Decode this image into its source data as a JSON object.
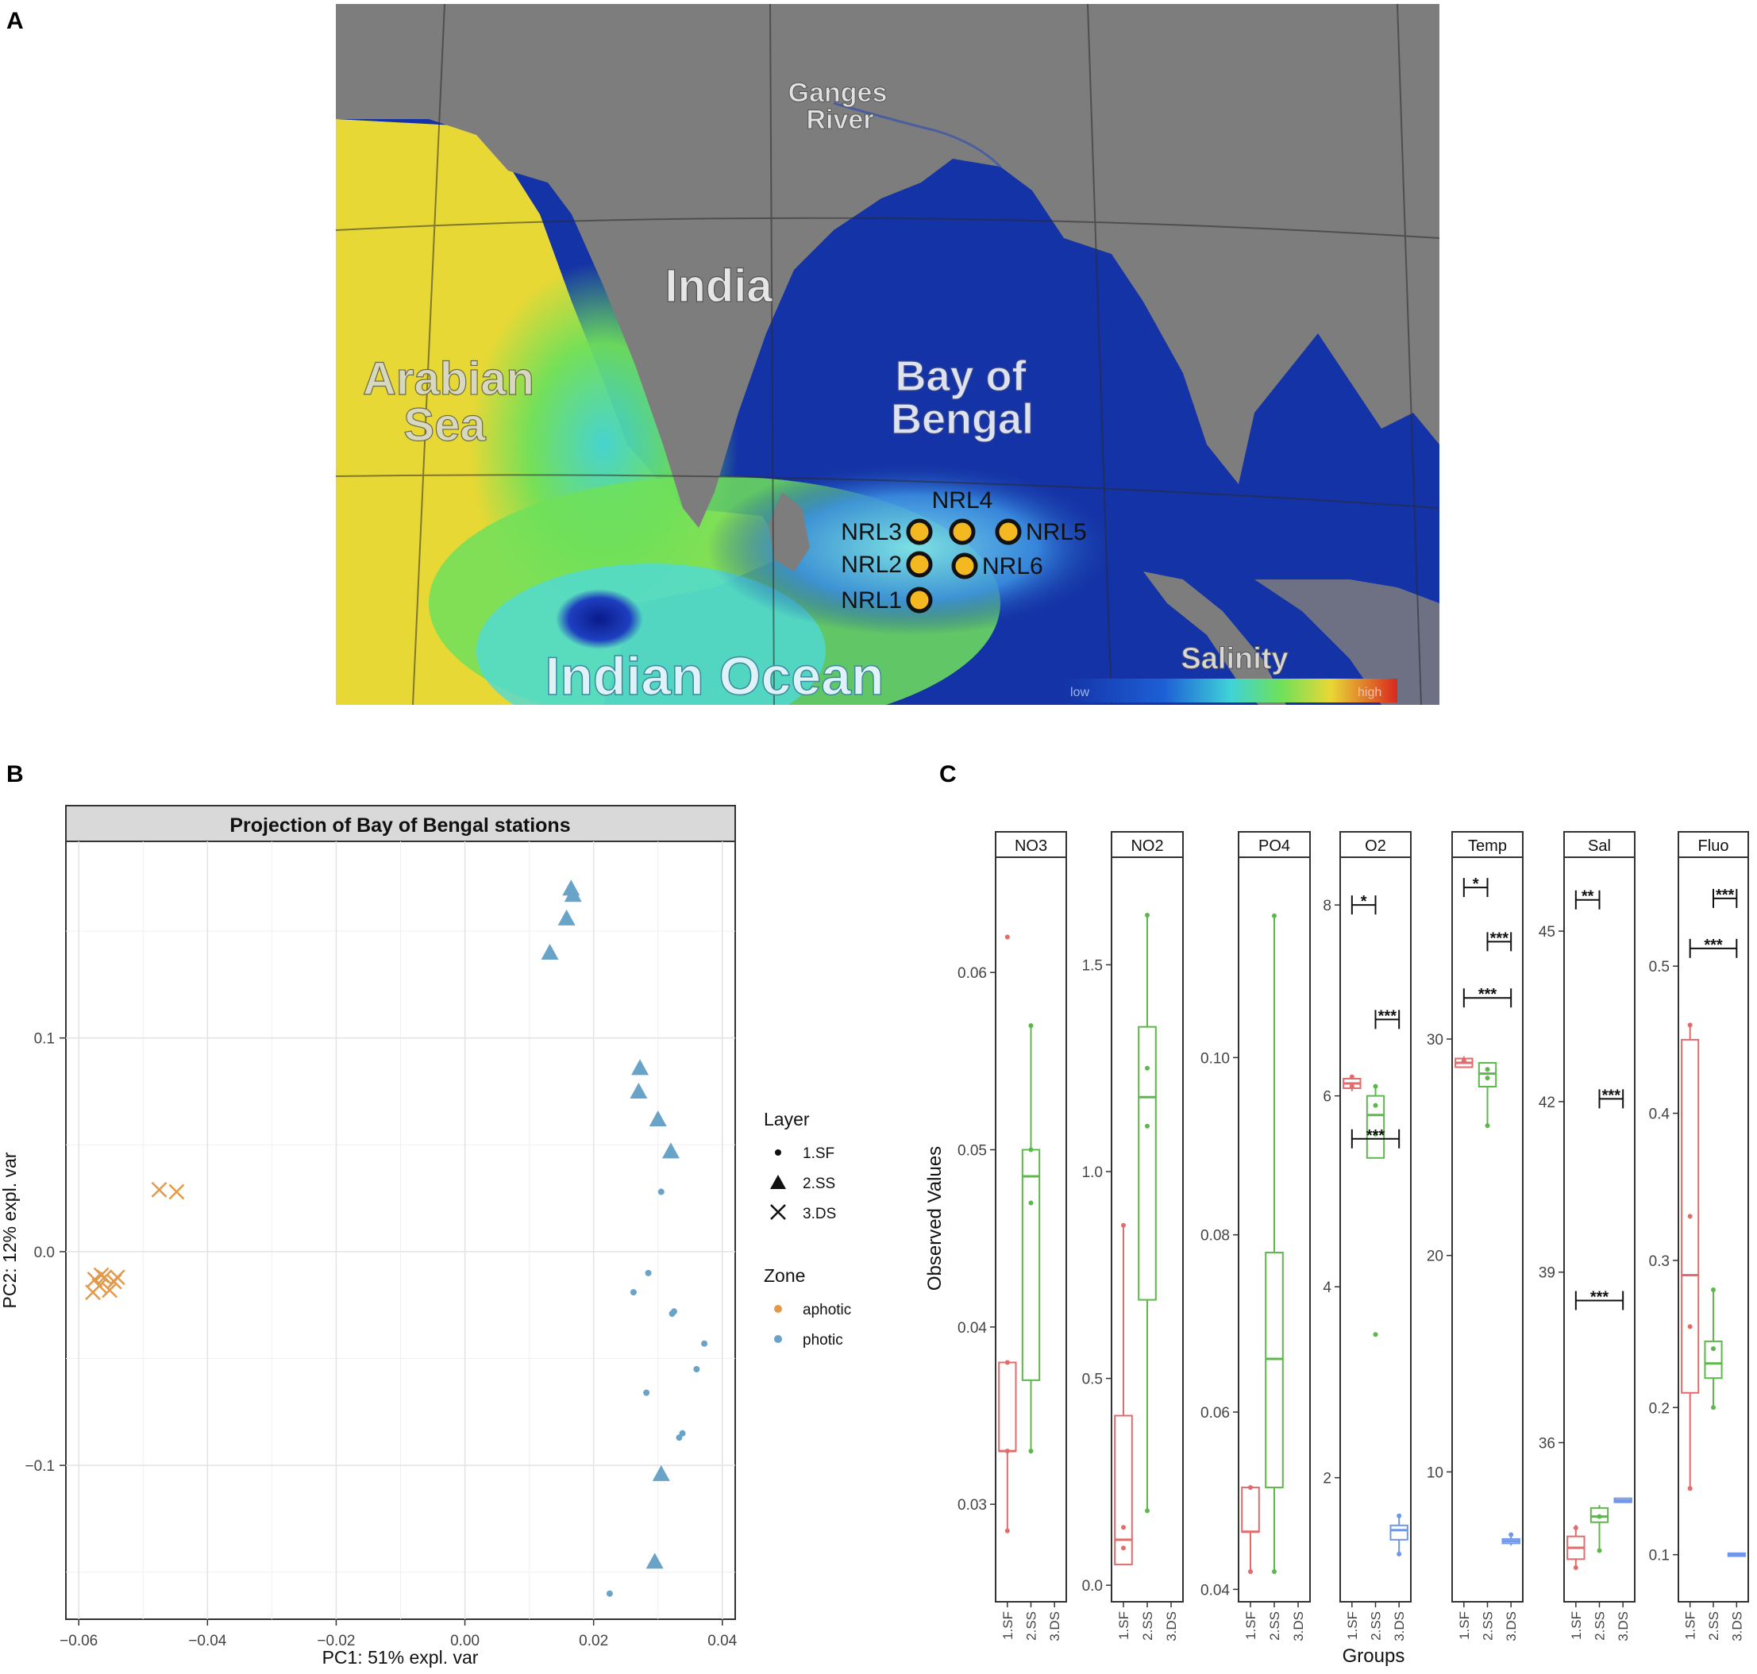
{
  "panel_labels": {
    "a": "A",
    "b": "B",
    "c": "C"
  },
  "map": {
    "labels": {
      "ganges": [
        "Ganges",
        "River"
      ],
      "india": "India",
      "arabian": [
        "Arabian",
        "Sea"
      ],
      "bay": [
        "Bay of",
        "Bengal"
      ],
      "indian_ocean": "Indian Ocean",
      "salinity": "Salinity",
      "low": "low",
      "high": "high"
    },
    "stations": [
      "NRL1",
      "NRL2",
      "NRL3",
      "NRL4",
      "NRL5",
      "NRL6"
    ],
    "colors": {
      "land": "#7d7d7d",
      "bay": "#1433a6",
      "arabian": "#e8d835",
      "station": "#f4b820"
    }
  },
  "chart_data": [
    {
      "type": "scatter",
      "title": "Projection of Bay of Bengal stations",
      "xlabel": "PC1: 51% expl. var",
      "ylabel": "PC2: 12% expl. var",
      "xlim": [
        -0.062,
        0.042
      ],
      "ylim": [
        -0.172,
        0.192
      ],
      "xticks": [
        -0.06,
        -0.04,
        -0.02,
        0.0,
        0.02,
        0.04
      ],
      "xtick_labels": [
        "−0.06",
        "−0.04",
        "−0.02",
        "0.00",
        "0.02",
        "0.04"
      ],
      "yticks": [
        -0.1,
        0.0,
        0.1
      ],
      "ytick_labels": [
        "−0.1",
        "0.0",
        "0.1"
      ],
      "grid": true,
      "legend_placement": "right",
      "legend": {
        "layer_title": "Layer",
        "layers": [
          {
            "label": "1.SF",
            "shape": "dot"
          },
          {
            "label": "2.SS",
            "shape": "triangle"
          },
          {
            "label": "3.DS",
            "shape": "cross"
          }
        ],
        "zone_title": "Zone",
        "zones": [
          {
            "label": "aphotic",
            "color": "#e29a4a"
          },
          {
            "label": "photic",
            "color": "#6aa3c8"
          }
        ]
      },
      "points": [
        {
          "x": 0.0165,
          "y": 0.17,
          "layer": "2.SS",
          "zone": "photic"
        },
        {
          "x": 0.0168,
          "y": 0.167,
          "layer": "2.SS",
          "zone": "photic"
        },
        {
          "x": 0.0158,
          "y": 0.156,
          "layer": "2.SS",
          "zone": "photic"
        },
        {
          "x": 0.0132,
          "y": 0.14,
          "layer": "2.SS",
          "zone": "photic"
        },
        {
          "x": 0.0272,
          "y": 0.086,
          "layer": "2.SS",
          "zone": "photic"
        },
        {
          "x": 0.027,
          "y": 0.075,
          "layer": "2.SS",
          "zone": "photic"
        },
        {
          "x": 0.03,
          "y": 0.062,
          "layer": "2.SS",
          "zone": "photic"
        },
        {
          "x": 0.032,
          "y": 0.047,
          "layer": "2.SS",
          "zone": "photic"
        },
        {
          "x": 0.0305,
          "y": -0.104,
          "layer": "2.SS",
          "zone": "photic"
        },
        {
          "x": 0.0295,
          "y": -0.145,
          "layer": "2.SS",
          "zone": "photic"
        },
        {
          "x": 0.0305,
          "y": 0.028,
          "layer": "1.SF",
          "zone": "photic"
        },
        {
          "x": 0.0285,
          "y": -0.01,
          "layer": "1.SF",
          "zone": "photic"
        },
        {
          "x": 0.0262,
          "y": -0.019,
          "layer": "1.SF",
          "zone": "photic"
        },
        {
          "x": 0.0325,
          "y": -0.028,
          "layer": "1.SF",
          "zone": "photic"
        },
        {
          "x": 0.0322,
          "y": -0.029,
          "layer": "1.SF",
          "zone": "photic"
        },
        {
          "x": 0.0372,
          "y": -0.043,
          "layer": "1.SF",
          "zone": "photic"
        },
        {
          "x": 0.036,
          "y": -0.055,
          "layer": "1.SF",
          "zone": "photic"
        },
        {
          "x": 0.0282,
          "y": -0.066,
          "layer": "1.SF",
          "zone": "photic"
        },
        {
          "x": 0.0338,
          "y": -0.085,
          "layer": "1.SF",
          "zone": "photic"
        },
        {
          "x": 0.0333,
          "y": -0.087,
          "layer": "1.SF",
          "zone": "photic"
        },
        {
          "x": 0.0225,
          "y": -0.16,
          "layer": "1.SF",
          "zone": "photic"
        },
        {
          "x": -0.0475,
          "y": 0.029,
          "layer": "3.DS",
          "zone": "aphotic"
        },
        {
          "x": -0.0448,
          "y": 0.028,
          "layer": "3.DS",
          "zone": "aphotic"
        },
        {
          "x": -0.0575,
          "y": -0.013,
          "layer": "3.DS",
          "zone": "aphotic"
        },
        {
          "x": -0.0568,
          "y": -0.016,
          "layer": "3.DS",
          "zone": "aphotic"
        },
        {
          "x": -0.056,
          "y": -0.012,
          "layer": "3.DS",
          "zone": "aphotic"
        },
        {
          "x": -0.0552,
          "y": -0.018,
          "layer": "3.DS",
          "zone": "aphotic"
        },
        {
          "x": -0.0545,
          "y": -0.014,
          "layer": "3.DS",
          "zone": "aphotic"
        },
        {
          "x": -0.0578,
          "y": -0.019,
          "layer": "3.DS",
          "zone": "aphotic"
        },
        {
          "x": -0.054,
          "y": -0.012,
          "layer": "3.DS",
          "zone": "aphotic"
        },
        {
          "x": -0.0565,
          "y": -0.011,
          "layer": "3.DS",
          "zone": "aphotic"
        }
      ]
    },
    {
      "type": "box",
      "ylabel": "Observed Values",
      "xlabel": "Groups",
      "groups": [
        "1.SF",
        "2.SS",
        "3.DS"
      ],
      "group_colors": [
        "#e26b6b",
        "#5cb84a",
        "#6f96e8"
      ],
      "facets": [
        {
          "name": "NO3",
          "ylim": [
            0.0245,
            0.0665
          ],
          "ticks": [
            0.03,
            0.04,
            0.05,
            0.06
          ],
          "tick_labels": [
            "0.03",
            "0.04",
            "0.05",
            "0.06"
          ],
          "boxes": [
            {
              "group": "1.SF",
              "q1": 0.033,
              "median": 0.033,
              "q3": 0.038,
              "min": 0.0285,
              "max": 0.038,
              "points": [
                0.062,
                0.038,
                0.033,
                0.0285
              ]
            },
            {
              "group": "2.SS",
              "q1": 0.037,
              "median": 0.0485,
              "q3": 0.05,
              "min": 0.033,
              "max": 0.057,
              "points": [
                0.057,
                0.05,
                0.047,
                0.033
              ]
            }
          ],
          "sig": []
        },
        {
          "name": "NO2",
          "ylim": [
            -0.04,
            1.76
          ],
          "ticks": [
            0.0,
            0.5,
            1.0,
            1.5
          ],
          "tick_labels": [
            "0.0",
            "0.5",
            "1.0",
            "1.5"
          ],
          "boxes": [
            {
              "group": "1.SF",
              "q1": 0.05,
              "median": 0.11,
              "q3": 0.41,
              "min": 0.05,
              "max": 0.87,
              "points": [
                0.87,
                0.14,
                0.09
              ]
            },
            {
              "group": "2.SS",
              "q1": 0.69,
              "median": 1.18,
              "q3": 1.35,
              "min": 0.18,
              "max": 1.62,
              "points": [
                1.62,
                1.25,
                1.11,
                0.18
              ]
            }
          ],
          "sig": []
        },
        {
          "name": "PO4",
          "ylim": [
            0.0386,
            0.1226
          ],
          "ticks": [
            0.04,
            0.06,
            0.08,
            0.1
          ],
          "tick_labels": [
            "0.04",
            "0.06",
            "0.08",
            "0.10"
          ],
          "boxes": [
            {
              "group": "1.SF",
              "q1": 0.0465,
              "median": 0.0465,
              "q3": 0.0515,
              "min": 0.042,
              "max": 0.0515,
              "points": [
                0.0515,
                0.042
              ]
            },
            {
              "group": "2.SS",
              "q1": 0.0515,
              "median": 0.066,
              "q3": 0.078,
              "min": 0.042,
              "max": 0.116,
              "points": [
                0.116,
                0.042
              ]
            }
          ],
          "sig": []
        },
        {
          "name": "O2",
          "ylim": [
            0.7,
            8.5
          ],
          "ticks": [
            2,
            4,
            6,
            8
          ],
          "tick_labels": [
            "2",
            "4",
            "6",
            "8"
          ],
          "boxes": [
            {
              "group": "1.SF",
              "q1": 6.08,
              "median": 6.13,
              "q3": 6.18,
              "min": 6.05,
              "max": 6.2,
              "points": [
                6.2,
                6.1
              ]
            },
            {
              "group": "2.SS",
              "q1": 5.35,
              "median": 5.8,
              "q3": 6.0,
              "min": 5.35,
              "max": 6.1,
              "points": [
                6.1,
                5.9,
                5.6,
                3.5
              ]
            },
            {
              "group": "3.DS",
              "q1": 1.35,
              "median": 1.45,
              "q3": 1.5,
              "min": 1.2,
              "max": 1.6,
              "points": [
                1.6,
                1.2
              ]
            }
          ],
          "sig": [
            {
              "from": 0,
              "to": 1,
              "y": 8.0,
              "label": "*"
            },
            {
              "from": 1,
              "to": 2,
              "y": 6.8,
              "label": "***"
            },
            {
              "from": 0,
              "to": 2,
              "y": 5.55,
              "label": "***"
            }
          ]
        },
        {
          "name": "Temp",
          "ylim": [
            4.0,
            38.4
          ],
          "ticks": [
            10,
            20,
            30
          ],
          "tick_labels": [
            "10",
            "20",
            "30"
          ],
          "boxes": [
            {
              "group": "1.SF",
              "q1": 28.7,
              "median": 28.9,
              "q3": 29.1,
              "min": 28.7,
              "max": 29.2,
              "points": [
                29.0
              ]
            },
            {
              "group": "2.SS",
              "q1": 27.8,
              "median": 28.4,
              "q3": 28.9,
              "min": 26.0,
              "max": 28.9,
              "points": [
                28.6,
                28.2,
                26.0
              ]
            },
            {
              "group": "3.DS",
              "q1": 6.7,
              "median": 6.8,
              "q3": 6.9,
              "min": 6.6,
              "max": 7.0,
              "points": [
                7.1
              ]
            }
          ],
          "sig": [
            {
              "from": 0,
              "to": 1,
              "y": 37.0,
              "label": "*"
            },
            {
              "from": 1,
              "to": 2,
              "y": 34.5,
              "label": "***"
            },
            {
              "from": 0,
              "to": 2,
              "y": 31.9,
              "label": "***"
            }
          ]
        },
        {
          "name": "Sal",
          "ylim": [
            33.2,
            46.3
          ],
          "ticks": [
            36,
            39,
            42,
            45
          ],
          "tick_labels": [
            "36",
            "39",
            "42",
            "45"
          ],
          "boxes": [
            {
              "group": "1.SF",
              "q1": 33.95,
              "median": 34.15,
              "q3": 34.35,
              "min": 33.8,
              "max": 34.55,
              "points": [
                34.5,
                33.8
              ]
            },
            {
              "group": "2.SS",
              "q1": 34.6,
              "median": 34.7,
              "q3": 34.85,
              "min": 34.1,
              "max": 34.9,
              "points": [
                34.7,
                34.1
              ]
            },
            {
              "group": "3.DS",
              "q1": 34.95,
              "median": 34.98,
              "q3": 35.02,
              "min": 34.95,
              "max": 35.02,
              "points": []
            }
          ],
          "sig": [
            {
              "from": 0,
              "to": 1,
              "y": 45.55,
              "label": "**"
            },
            {
              "from": 1,
              "to": 2,
              "y": 42.05,
              "label": "***"
            },
            {
              "from": 0,
              "to": 2,
              "y": 38.5,
              "label": "***"
            }
          ]
        },
        {
          "name": "Fluo",
          "ylim": [
            0.068,
            0.574
          ],
          "ticks": [
            0.1,
            0.2,
            0.3,
            0.4,
            0.5
          ],
          "tick_labels": [
            "0.1",
            "0.2",
            "0.3",
            "0.4",
            "0.5"
          ],
          "boxes": [
            {
              "group": "1.SF",
              "q1": 0.21,
              "median": 0.29,
              "q3": 0.45,
              "min": 0.145,
              "max": 0.46,
              "points": [
                0.46,
                0.33,
                0.255,
                0.145
              ]
            },
            {
              "group": "2.SS",
              "q1": 0.22,
              "median": 0.23,
              "q3": 0.245,
              "min": 0.2,
              "max": 0.28,
              "points": [
                0.28,
                0.24,
                0.2
              ]
            },
            {
              "group": "3.DS",
              "q1": 0.099,
              "median": 0.1,
              "q3": 0.101,
              "min": 0.099,
              "max": 0.101,
              "points": []
            }
          ],
          "sig": [
            {
              "from": 1,
              "to": 2,
              "y": 0.546,
              "label": "***"
            },
            {
              "from": 0,
              "to": 2,
              "y": 0.512,
              "label": "***"
            }
          ]
        }
      ]
    }
  ]
}
